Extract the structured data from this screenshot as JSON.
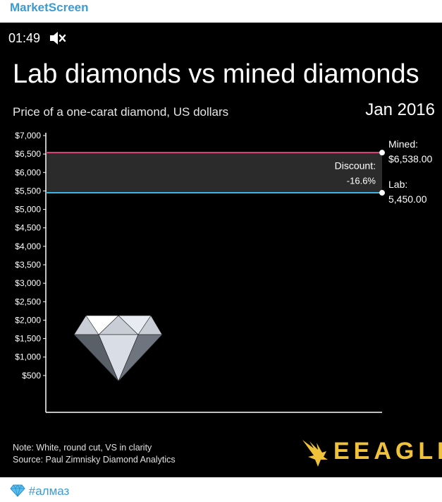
{
  "channel": {
    "name": "MarketScreen"
  },
  "video": {
    "timestamp": "01:49",
    "muted_icon": "speaker-muted-icon"
  },
  "footer": {
    "hashtag": "#алмаз",
    "icon": "gem-icon"
  },
  "chart_data": {
    "type": "line",
    "title": "Lab diamonds vs mined diamonds",
    "subtitle": "Price of a one-carat diamond, US dollars",
    "date_label": "Jan 2016",
    "ylim": [
      0,
      7000
    ],
    "yticks": [
      "$500",
      "$1,000",
      "$1,500",
      "$2,000",
      "$2,500",
      "$3,000",
      "$3,500",
      "$4,000",
      "$4,500",
      "$5,000",
      "$5,500",
      "$6,000",
      "$6,500",
      "$7,000"
    ],
    "ytick_values": [
      500,
      1000,
      1500,
      2000,
      2500,
      3000,
      3500,
      4000,
      4500,
      5000,
      5500,
      6000,
      6500,
      7000
    ],
    "series": [
      {
        "name": "Mined:",
        "value_label": "$6,538.00",
        "value": 6538,
        "color": "#e0457b"
      },
      {
        "name": "Lab:",
        "value_label": "5,450.00",
        "value": 5450,
        "color": "#3cb4e6"
      }
    ],
    "discount": {
      "label": "Discount:",
      "value": "-16.6%"
    },
    "note": "Note: White, round cut, VS in clarity",
    "source": "Source: Paul Zimnisky Diamond Analytics",
    "brand": "EEAGLI"
  }
}
